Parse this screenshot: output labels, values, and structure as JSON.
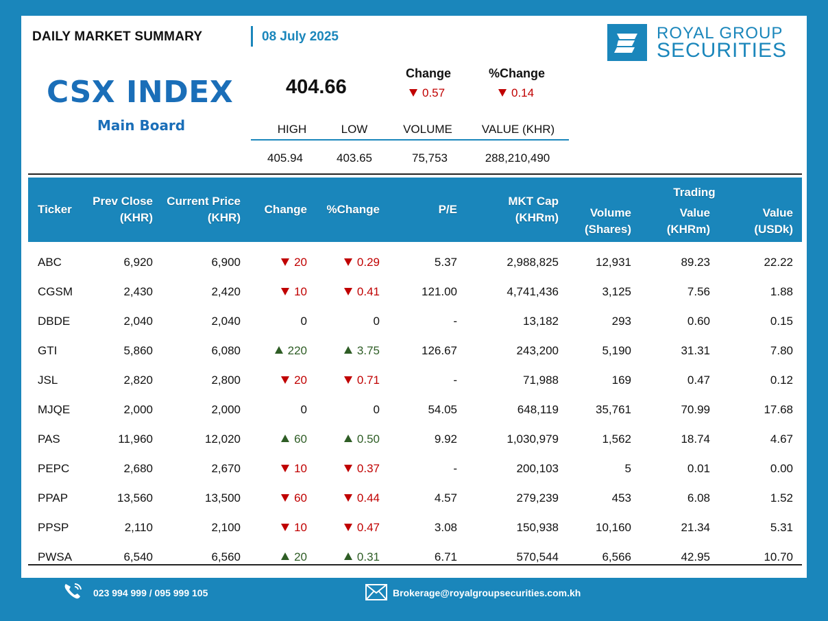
{
  "header": {
    "title": "DAILY MARKET SUMMARY",
    "date": "08 July 2025"
  },
  "brand": {
    "line1": "ROYAL GROUP",
    "line2": "SECURITIES",
    "color": "#1a86bb"
  },
  "index": {
    "name": "CSX INDEX",
    "board": "Main Board",
    "value": "404.66",
    "change_label": "Change",
    "change_value": "0.57",
    "pct_change_label": "%Change",
    "pct_change_value": "0.14",
    "direction": "down"
  },
  "stats": {
    "headers": [
      "HIGH",
      "LOW",
      "VOLUME",
      "VALUE (KHR)"
    ],
    "values": [
      "405.94",
      "403.65",
      "75,753",
      "288,210,490"
    ]
  },
  "table": {
    "group_header": "Trading",
    "columns": [
      {
        "line1": "Ticker",
        "line2": ""
      },
      {
        "line1": "Prev Close",
        "line2": "(KHR)"
      },
      {
        "line1": "Current Price",
        "line2": "(KHR)"
      },
      {
        "line1": "Change",
        "line2": ""
      },
      {
        "line1": "%Change",
        "line2": ""
      },
      {
        "line1": "P/E",
        "line2": ""
      },
      {
        "line1": "MKT Cap",
        "line2": "(KHRm)"
      },
      {
        "line1": "Volume",
        "line2": "(Shares)"
      },
      {
        "line1": "Value",
        "line2": "(KHRm)"
      },
      {
        "line1": "Value",
        "line2": "(USDk)"
      }
    ],
    "rows": [
      {
        "ticker": "ABC",
        "prev": "6,920",
        "cur": "6,900",
        "dir": "down",
        "chg": "20",
        "pct": "0.29",
        "pe": "5.37",
        "cap": "2,988,825",
        "vol": "12,931",
        "val_khr": "89.23",
        "val_usd": "22.22"
      },
      {
        "ticker": "CGSM",
        "prev": "2,430",
        "cur": "2,420",
        "dir": "down",
        "chg": "10",
        "pct": "0.41",
        "pe": "121.00",
        "cap": "4,741,436",
        "vol": "3,125",
        "val_khr": "7.56",
        "val_usd": "1.88"
      },
      {
        "ticker": "DBDE",
        "prev": "2,040",
        "cur": "2,040",
        "dir": "flat",
        "chg": "0",
        "pct": "0",
        "pe": "-",
        "cap": "13,182",
        "vol": "293",
        "val_khr": "0.60",
        "val_usd": "0.15"
      },
      {
        "ticker": "GTI",
        "prev": "5,860",
        "cur": "6,080",
        "dir": "up",
        "chg": "220",
        "pct": "3.75",
        "pe": "126.67",
        "cap": "243,200",
        "vol": "5,190",
        "val_khr": "31.31",
        "val_usd": "7.80"
      },
      {
        "ticker": "JSL",
        "prev": "2,820",
        "cur": "2,800",
        "dir": "down",
        "chg": "20",
        "pct": "0.71",
        "pe": "-",
        "cap": "71,988",
        "vol": "169",
        "val_khr": "0.47",
        "val_usd": "0.12"
      },
      {
        "ticker": "MJQE",
        "prev": "2,000",
        "cur": "2,000",
        "dir": "flat",
        "chg": "0",
        "pct": "0",
        "pe": "54.05",
        "cap": "648,119",
        "vol": "35,761",
        "val_khr": "70.99",
        "val_usd": "17.68"
      },
      {
        "ticker": "PAS",
        "prev": "11,960",
        "cur": "12,020",
        "dir": "up",
        "chg": "60",
        "pct": "0.50",
        "pe": "9.92",
        "cap": "1,030,979",
        "vol": "1,562",
        "val_khr": "18.74",
        "val_usd": "4.67"
      },
      {
        "ticker": "PEPC",
        "prev": "2,680",
        "cur": "2,670",
        "dir": "down",
        "chg": "10",
        "pct": "0.37",
        "pe": "-",
        "cap": "200,103",
        "vol": "5",
        "val_khr": "0.01",
        "val_usd": "0.00"
      },
      {
        "ticker": "PPAP",
        "prev": "13,560",
        "cur": "13,500",
        "dir": "down",
        "chg": "60",
        "pct": "0.44",
        "pe": "4.57",
        "cap": "279,239",
        "vol": "453",
        "val_khr": "6.08",
        "val_usd": "1.52"
      },
      {
        "ticker": "PPSP",
        "prev": "2,110",
        "cur": "2,100",
        "dir": "down",
        "chg": "10",
        "pct": "0.47",
        "pe": "3.08",
        "cap": "150,938",
        "vol": "10,160",
        "val_khr": "21.34",
        "val_usd": "5.31"
      },
      {
        "ticker": "PWSA",
        "prev": "6,540",
        "cur": "6,560",
        "dir": "up",
        "chg": "20",
        "pct": "0.31",
        "pe": "6.71",
        "cap": "570,544",
        "vol": "6,566",
        "val_khr": "42.95",
        "val_usd": "10.70"
      }
    ]
  },
  "footer": {
    "phone": "023 994 999 / 095 999 105",
    "email": "Brokerage@royalgroupsecurities.com.kh"
  },
  "colors": {
    "frame": "#1a86bb",
    "index_blue": "#1a6eb8",
    "negative": "#c00000",
    "positive": "#2e5d25"
  },
  "icons": [
    "phone-icon",
    "mail-icon",
    "triangle-down-icon",
    "triangle-up-icon"
  ]
}
